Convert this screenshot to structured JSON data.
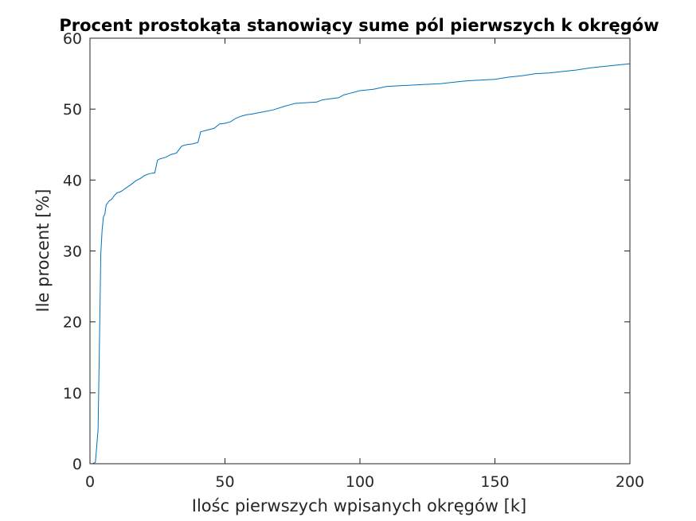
{
  "chart_data": {
    "type": "line",
    "title": "Procent prostokąta stanowiący sume pól pierwszych k okręgów",
    "xlabel": "Ilośc pierwszych wpisanych okręgów [k]",
    "ylabel": "Ile procent [%]",
    "xlim": [
      0,
      200
    ],
    "ylim": [
      0,
      60
    ],
    "xticks": [
      0,
      50,
      100,
      150,
      200
    ],
    "yticks": [
      0,
      10,
      20,
      30,
      40,
      50,
      60
    ],
    "grid": false,
    "line_color": "#0072BD",
    "series": [
      {
        "x": [
          0,
          1,
          2,
          3,
          3.5,
          4,
          4.5,
          5,
          5.5,
          6,
          7,
          8,
          9,
          10,
          11,
          12,
          13,
          15,
          17,
          19,
          20,
          22,
          24,
          25,
          26,
          28,
          30,
          32,
          34,
          35,
          36,
          38,
          40,
          41,
          42,
          43,
          44,
          46,
          48,
          50,
          52,
          54,
          56,
          58,
          60,
          64,
          68,
          72,
          74,
          76,
          80,
          84,
          86,
          88,
          92,
          94,
          96,
          100,
          105,
          110,
          115,
          120,
          125,
          130,
          135,
          140,
          145,
          150,
          155,
          160,
          165,
          170,
          175,
          180,
          185,
          190,
          195,
          200
        ],
        "y": [
          0,
          0,
          0.2,
          4.8,
          17,
          29.5,
          33,
          34.8,
          35.2,
          36.5,
          37,
          37.3,
          37.8,
          38.2,
          38.3,
          38.5,
          38.8,
          39.3,
          39.9,
          40.3,
          40.6,
          40.9,
          41,
          42.8,
          43,
          43.2,
          43.6,
          43.8,
          44.8,
          44.9,
          45,
          45.1,
          45.3,
          46.8,
          46.9,
          47,
          47.1,
          47.3,
          47.9,
          48,
          48.2,
          48.7,
          49,
          49.2,
          49.3,
          49.6,
          49.9,
          50.4,
          50.6,
          50.8,
          50.9,
          51,
          51.3,
          51.4,
          51.6,
          52,
          52.2,
          52.6,
          52.8,
          53.2,
          53.3,
          53.4,
          53.5,
          53.6,
          53.8,
          54,
          54.1,
          54.2,
          54.5,
          54.7,
          55,
          55.1,
          55.3,
          55.5,
          55.8,
          56,
          56.2,
          56.4
        ]
      }
    ]
  }
}
